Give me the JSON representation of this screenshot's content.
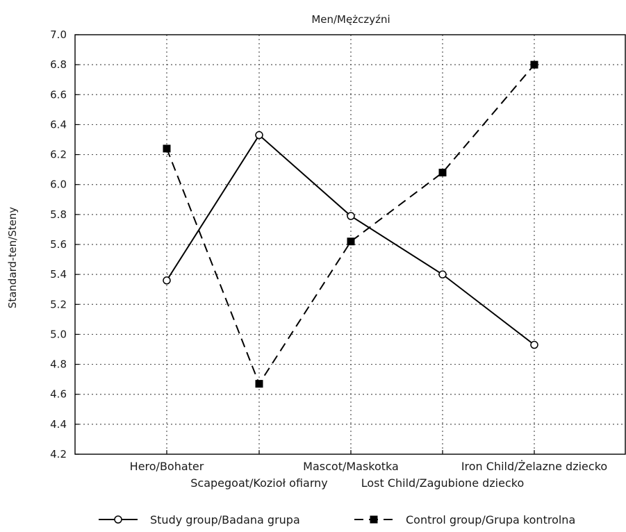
{
  "chart_data": {
    "type": "line",
    "title": "Men/Mężczyźni",
    "ylabel": "Standard-ten/Steny",
    "xlabel": "",
    "ylim": [
      4.2,
      7.0
    ],
    "yticks": [
      "4.2",
      "4.4",
      "4.6",
      "4.8",
      "5.0",
      "5.2",
      "5.4",
      "5.6",
      "5.8",
      "6.0",
      "6.2",
      "6.4",
      "6.6",
      "6.8",
      "7.0"
    ],
    "grid": true,
    "legend_position": "bottom",
    "categories": [
      "Hero/Bohater",
      "Scapegoat/Kozioł ofiarny",
      "Mascot/Maskotka",
      "Lost Child/Zagubione dziecko",
      "Iron Child/Żelazne dziecko"
    ],
    "series": [
      {
        "name": "Study group/Badana grupa",
        "values": [
          5.36,
          6.33,
          5.79,
          5.4,
          4.93
        ],
        "line_style": "solid",
        "marker": "open-circle",
        "color": "#000000"
      },
      {
        "name": "Control group/Grupa kontrolna",
        "values": [
          6.24,
          4.67,
          5.62,
          6.08,
          6.8
        ],
        "line_style": "dashed",
        "marker": "filled-square",
        "color": "#000000"
      }
    ]
  }
}
